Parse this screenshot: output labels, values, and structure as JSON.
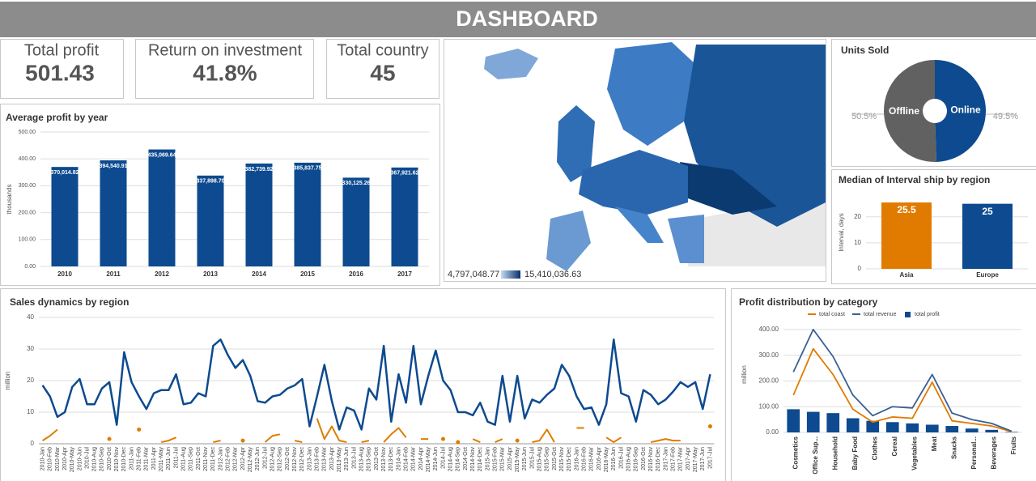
{
  "title": "DASHBOARD",
  "kpis": [
    {
      "label": "Total profit",
      "value": "501.43"
    },
    {
      "label": "Return on investment",
      "value": "41.8%"
    },
    {
      "label": "Total country",
      "value": "45"
    }
  ],
  "chart_data": [
    {
      "type": "bar",
      "title": "Average profit by year",
      "y_label": "thousands",
      "categories": [
        "2010",
        "2011",
        "2012",
        "2013",
        "2014",
        "2015",
        "2016",
        "2017"
      ],
      "values": [
        370.01482,
        394.54091,
        435.06964,
        337.8987,
        382.73992,
        385.83775,
        330.12526,
        367.92162
      ],
      "value_labels": [
        "370,014.82",
        "394,540.91",
        "435,069.64",
        "337,898.70",
        "382,739.92",
        "385,837.75",
        "330,125.26",
        "367,921.62"
      ],
      "color": "#0d4a8f",
      "ylim": [
        0,
        500
      ],
      "yticks": [
        {
          "value": 0,
          "label": "0.00"
        },
        {
          "value": 100,
          "label": "100.00"
        },
        {
          "value": 200,
          "label": "200.00"
        },
        {
          "value": 300,
          "label": "300.00"
        },
        {
          "value": 400,
          "label": "400.00"
        },
        {
          "value": 500,
          "label": "500.00"
        }
      ],
      "grid": true
    },
    {
      "type": "map",
      "legend_labels": [
        "4,797,048.77",
        "15,410,036.63"
      ],
      "colors": [
        "#c6dbef",
        "#08306b"
      ]
    },
    {
      "type": "pie",
      "title": "Units Sold",
      "categories": [
        "Offline",
        "Online"
      ],
      "values": [
        50.5,
        49.5
      ],
      "value_labels": [
        "50.5%",
        "49.5%"
      ],
      "colors": [
        "#616161",
        "#0d4a8f"
      ]
    },
    {
      "type": "bar",
      "title": "Median of Interval ship by region",
      "y_label": "Interval, days",
      "categories": [
        "Asia",
        "Europe"
      ],
      "values": [
        25.5,
        25
      ],
      "colors": [
        "#e07b00",
        "#0d4a8f"
      ],
      "ylim": [
        0,
        28
      ],
      "yticks": [
        0,
        10,
        20
      ],
      "grid": true
    },
    {
      "type": "line",
      "title": "Sales dynamics by region",
      "y_label": "million",
      "categories": [
        "2010-Jan",
        "2010-Feb",
        "2010-Mar",
        "2010-Apr",
        "2010-May",
        "2010-Jun",
        "2010-Jul",
        "2010-Aug",
        "2010-Sep",
        "2010-Oct",
        "2010-Nov",
        "2010-Dec",
        "2011-Jan",
        "2011-Feb",
        "2011-Mar",
        "2011-Apr",
        "2011-May",
        "2011-Jun",
        "2011-Jul",
        "2011-Aug",
        "2011-Sep",
        "2011-Oct",
        "2011-Nov",
        "2011-Dec",
        "2012-Jan",
        "2012-Feb",
        "2012-Mar",
        "2012-Apr",
        "2012-May",
        "2012-Jun",
        "2012-Jul",
        "2012-Aug",
        "2012-Sep",
        "2012-Oct",
        "2012-Nov",
        "2012-Dec",
        "2013-Jan",
        "2013-Feb",
        "2013-Mar",
        "2013-Apr",
        "2013-May",
        "2013-Jun",
        "2013-Jul",
        "2013-Aug",
        "2013-Sep",
        "2013-Oct",
        "2013-Nov",
        "2013-Dec",
        "2014-Jan",
        "2014-Feb",
        "2014-Mar",
        "2014-Apr",
        "2014-May",
        "2014-Jun",
        "2014-Jul",
        "2014-Aug",
        "2014-Sep",
        "2014-Oct",
        "2014-Nov",
        "2014-Dec",
        "2015-Jan",
        "2015-Feb",
        "2015-Mar",
        "2015-Apr",
        "2015-May",
        "2015-Jun",
        "2015-Jul",
        "2015-Aug",
        "2015-Sep",
        "2015-Oct",
        "2015-Nov",
        "2015-Dec",
        "2016-Jan",
        "2016-Feb",
        "2016-Mar",
        "2016-Apr",
        "2016-May",
        "2016-Jun",
        "2016-Jul",
        "2016-Aug",
        "2016-Sep",
        "2016-Oct",
        "2016-Nov",
        "2016-Dec",
        "2017-Jan",
        "2017-Feb",
        "2017-Mar",
        "2017-Apr",
        "2017-May",
        "2017-Jun",
        "2017-Jul"
      ],
      "series": [
        {
          "color": "#0d4a8f",
          "values": [
            18.5,
            15,
            8.5,
            10,
            18,
            20.5,
            12.5,
            12.5,
            17.5,
            19.5,
            6,
            29,
            19.5,
            15,
            11,
            16,
            17,
            17,
            22,
            12.5,
            13,
            16,
            15,
            31,
            33,
            28,
            24,
            26.5,
            21.5,
            13.5,
            13,
            15,
            15.5,
            17.5,
            18.5,
            20.5,
            5.5,
            15,
            25,
            13.5,
            4.5,
            11.5,
            10.5,
            4.5,
            17.5,
            14,
            31,
            7,
            22,
            13,
            31,
            12.5,
            21.5,
            29.5,
            20,
            17,
            10,
            10,
            9,
            13,
            7,
            6,
            21.5,
            7,
            21.5,
            8,
            14,
            13,
            15.5,
            17.5,
            25,
            21.5,
            15,
            11,
            11.5,
            6,
            12.5,
            33,
            16,
            15,
            7,
            17,
            15.5,
            12.5,
            14,
            16.5,
            19.5,
            18,
            19.5,
            11,
            22
          ]
        },
        {
          "color": "#e07b00",
          "values": [
            1,
            2.5,
            4.5,
            null,
            null,
            null,
            null,
            null,
            null,
            1.5,
            null,
            null,
            null,
            4.5,
            null,
            null,
            0.5,
            1,
            2,
            null,
            null,
            null,
            null,
            0.5,
            1,
            null,
            null,
            1,
            null,
            null,
            0.5,
            2.5,
            3,
            null,
            1,
            0.5,
            null,
            8,
            1.5,
            5.5,
            1,
            0.5,
            null,
            0.5,
            1,
            null,
            0.5,
            3,
            5,
            2,
            null,
            1.5,
            1.5,
            null,
            1.5,
            null,
            0.5,
            null,
            1.5,
            0.5,
            null,
            0.5,
            1.5,
            null,
            1,
            null,
            0.5,
            1,
            4.5,
            0.5,
            null,
            null,
            5,
            5,
            null,
            null,
            2,
            0.5,
            2,
            null,
            null,
            null,
            0.5,
            1,
            1.5,
            1,
            1,
            null,
            null,
            null,
            5.5
          ]
        }
      ],
      "ylim": [
        0,
        40
      ],
      "yticks": [
        0,
        10,
        20,
        30,
        40
      ],
      "grid": true
    },
    {
      "type": "combo",
      "title": "Profit distribution by category",
      "y_label": "million",
      "categories": [
        "Cosmetics",
        "Office Sup...",
        "Household",
        "Baby Food",
        "Clothes",
        "Cereal",
        "Vegetables",
        "Meat",
        "Snacks",
        "Personal...",
        "Beverages",
        "Fruits"
      ],
      "series": [
        {
          "name": "total coast",
          "type": "line",
          "color": "#e07b00",
          "values": [
            145,
            325,
            225,
            90,
            40,
            60,
            55,
            195,
            45,
            35,
            25,
            3
          ]
        },
        {
          "name": "total revenue",
          "type": "line",
          "color": "#3a5f94",
          "values": [
            235,
            400,
            295,
            145,
            65,
            100,
            95,
            225,
            75,
            50,
            35,
            5
          ]
        },
        {
          "name": "total profit",
          "type": "bar",
          "color": "#0d4a8f",
          "values": [
            90,
            80,
            75,
            55,
            45,
            40,
            35,
            30,
            25,
            15,
            10,
            2
          ]
        }
      ],
      "ylim": [
        0,
        450
      ],
      "yticks": [
        {
          "value": 0,
          "label": "0.00"
        },
        {
          "value": 100,
          "label": "100.00"
        },
        {
          "value": 200,
          "label": "200.00"
        },
        {
          "value": 300,
          "label": "300.00"
        },
        {
          "value": 400,
          "label": "400.00"
        }
      ],
      "grid": true,
      "legend": "top"
    }
  ]
}
